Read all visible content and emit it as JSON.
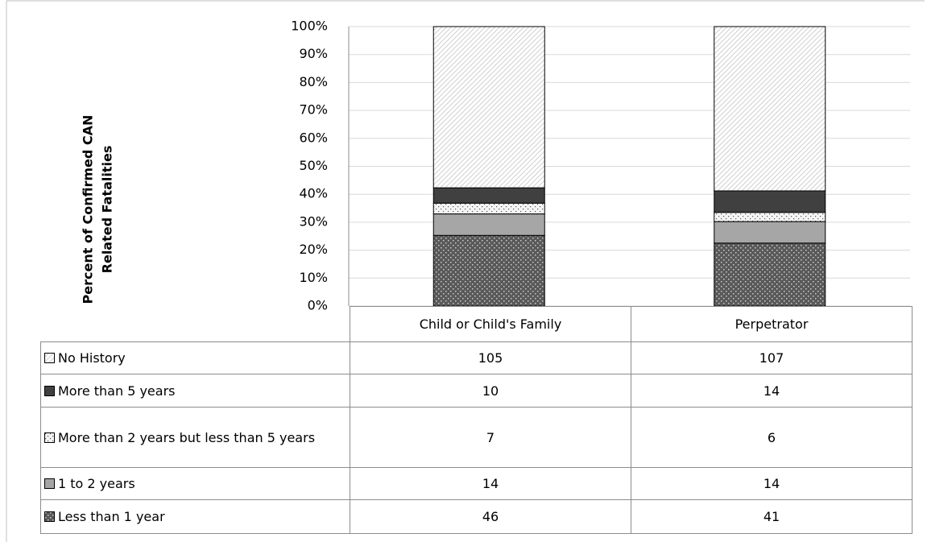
{
  "chart_data": {
    "type": "bar",
    "stacking": "percent",
    "y_label": [
      "Percent of Confirmed CAN",
      "Related Fatalities"
    ],
    "categories": [
      "Child or Child's Family",
      "Perpetrator"
    ],
    "series": [
      {
        "name": "No History",
        "color": "#ffffff",
        "values": [
          105,
          107
        ]
      },
      {
        "name": "More than 5 years",
        "color": "#404040",
        "values": [
          10,
          14
        ]
      },
      {
        "name": "More than 2 years but less than 5 years",
        "color": "#f4f4f4",
        "values": [
          7,
          6
        ]
      },
      {
        "name": "1 to 2 years",
        "color": "#a6a6a6",
        "values": [
          14,
          14
        ]
      },
      {
        "name": "Less than 1 year",
        "color": "#595959",
        "values": [
          46,
          41
        ]
      }
    ],
    "ylim": [
      0,
      100
    ],
    "yticks": [
      {
        "value": 0,
        "label": "0%"
      },
      {
        "value": 10,
        "label": "10%"
      },
      {
        "value": 20,
        "label": "20%"
      },
      {
        "value": 30,
        "label": "30%"
      },
      {
        "value": 40,
        "label": "40%"
      },
      {
        "value": 50,
        "label": "50%"
      },
      {
        "value": 60,
        "label": "60%"
      },
      {
        "value": 70,
        "label": "70%"
      },
      {
        "value": 80,
        "label": "80%"
      },
      {
        "value": 90,
        "label": "90%"
      },
      {
        "value": 100,
        "label": "100%"
      }
    ],
    "grid": true
  }
}
